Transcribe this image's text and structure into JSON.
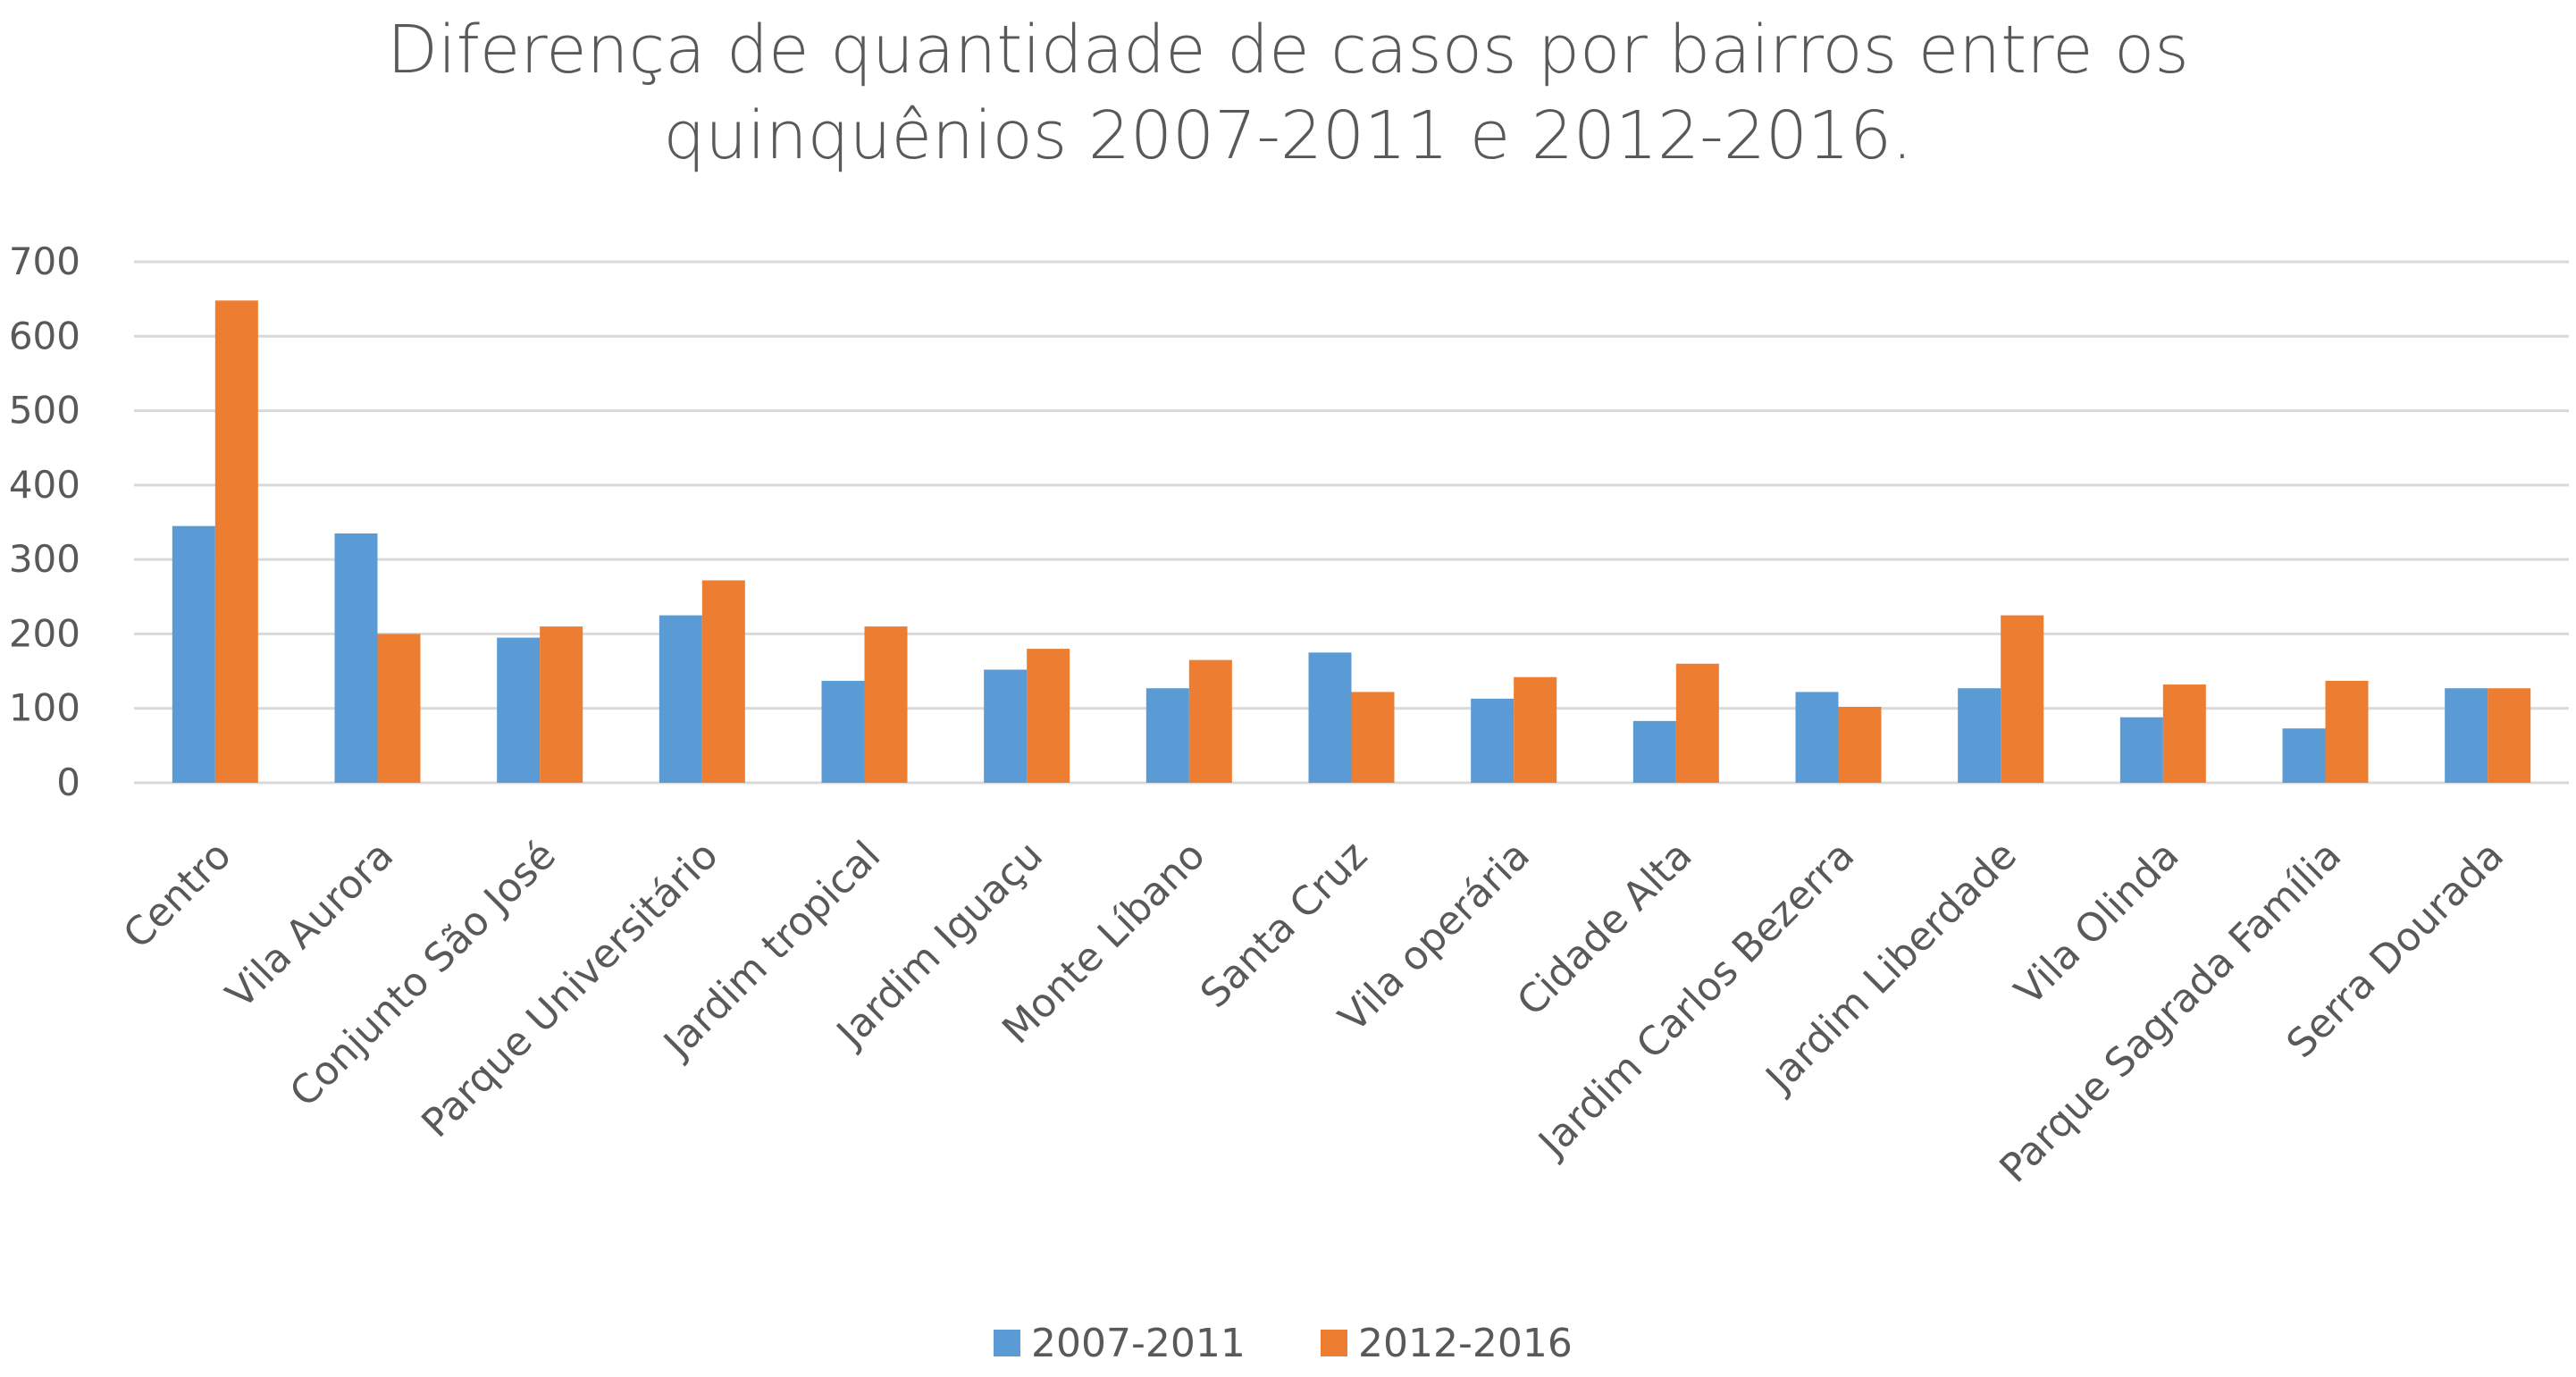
{
  "chart_data": {
    "type": "bar",
    "title_lines": [
      "Diferença de quantidade de casos por bairros entre os",
      "quinquênios 2007-2011 e 2012-2016."
    ],
    "categories": [
      "Centro",
      "Vila Aurora",
      "Conjunto São José",
      "Parque Universitário",
      "Jardim tropical",
      "Jardim Iguaçu",
      "Monte Líbano",
      "Santa Cruz",
      "Vila operária",
      "Cidade Alta",
      "Jardim Carlos Bezerra",
      "Jardim Liberdade",
      "Vila Olinda",
      "Parque Sagrada Família",
      "Serra Dourada"
    ],
    "series": [
      {
        "name": "2007-2011",
        "color": "#5B9BD5",
        "values": [
          345,
          335,
          195,
          225,
          137,
          152,
          127,
          175,
          113,
          83,
          122,
          127,
          88,
          73,
          127
        ]
      },
      {
        "name": "2012-2016",
        "color": "#ED7D31",
        "values": [
          648,
          200,
          210,
          272,
          210,
          180,
          165,
          122,
          142,
          160,
          102,
          225,
          132,
          137,
          127
        ]
      }
    ],
    "y_ticks": [
      "0",
      "100",
      "200",
      "300",
      "400",
      "500",
      "600",
      "700"
    ],
    "ylim": [
      0,
      700
    ],
    "grid": true,
    "legend_position": "bottom",
    "gridline_color": "#D9D9D9"
  }
}
